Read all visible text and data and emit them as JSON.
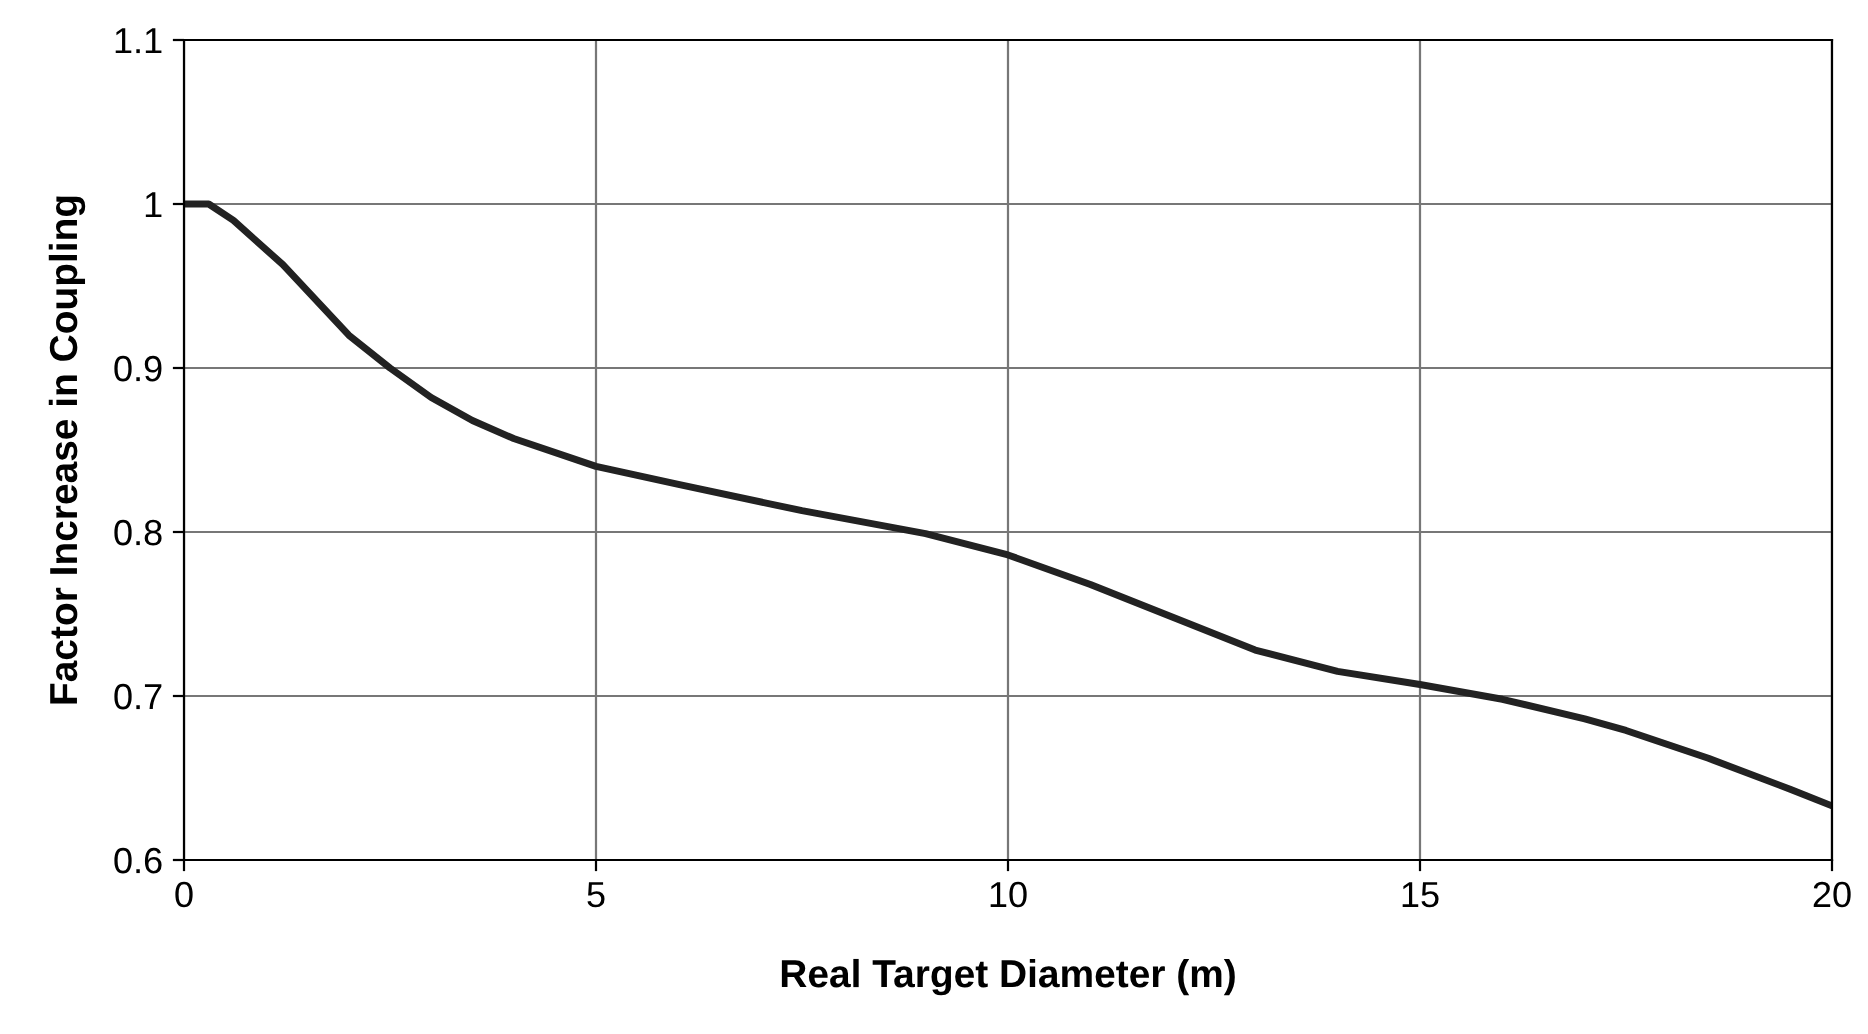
{
  "chart_data": {
    "type": "line",
    "xlabel": "Real Target Diameter (m)",
    "ylabel": "Factor Increase in Coupling",
    "x": [
      0,
      0.3,
      0.6,
      1.2,
      2,
      2.5,
      3,
      3.5,
      4,
      5,
      6,
      7.5,
      9,
      10,
      11,
      12,
      13,
      14,
      15,
      16,
      17,
      17.5,
      18.5,
      19.5,
      20
    ],
    "series": [
      {
        "color": "#222222",
        "values": [
          1.0,
          1.0,
          0.99,
          0.963,
          0.92,
          0.9,
          0.882,
          0.868,
          0.857,
          0.84,
          0.829,
          0.813,
          0.799,
          0.786,
          0.768,
          0.748,
          0.728,
          0.715,
          0.707,
          0.698,
          0.686,
          0.679,
          0.662,
          0.643,
          0.633
        ]
      }
    ],
    "xlim": [
      0,
      20
    ],
    "xticks": [
      0,
      5,
      10,
      15,
      20
    ],
    "ylim": [
      0.6,
      1.1
    ],
    "yticks": [
      0.6,
      0.7,
      0.8,
      0.9,
      1,
      1.1
    ],
    "grid": true,
    "legend": false,
    "marker": "none",
    "line_style": "solid"
  }
}
